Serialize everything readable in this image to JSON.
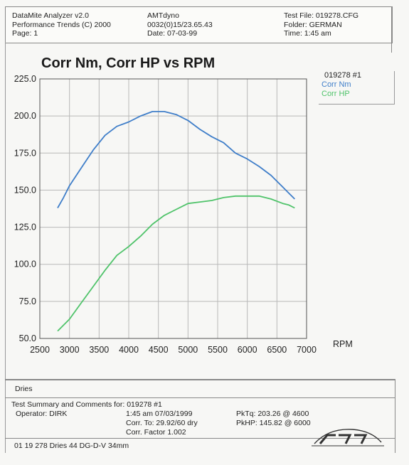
{
  "header": {
    "app_name": "DataMite Analyzer v2.0",
    "report_name": "Performance Trends (C) 2000",
    "page": "Page:  1",
    "dyno": "AMTdyno",
    "run_id": "0032(0)15/23.65.43",
    "date": "Date:  07-03-99",
    "test_file": "Test File:  019278.CFG",
    "folder": "Folder:  GERMAN",
    "time": "Time:  1:45 am"
  },
  "colors": {
    "corr_nm": "#3f7ec9",
    "corr_hp": "#4fc36a",
    "grid": "#b8b8b8"
  },
  "chart_data": {
    "type": "line",
    "title": "Corr Nm, Corr HP vs RPM",
    "xlabel": "RPM",
    "ylabel": "",
    "xlim": [
      2500,
      7000
    ],
    "ylim": [
      50,
      225
    ],
    "x_ticks": [
      "2500",
      "3000",
      "3500",
      "4000",
      "4500",
      "5000",
      "5500",
      "6000",
      "6500",
      "7000"
    ],
    "y_ticks": [
      "50.0",
      "75.0",
      "100.0",
      "125.0",
      "150.0",
      "175.0",
      "200.0",
      "225.0"
    ],
    "grid": true,
    "legend_title": "019278  #1",
    "legend_position": "top-right",
    "series": [
      {
        "name": "Corr Nm",
        "points": [
          [
            2800,
            138
          ],
          [
            2900,
            145
          ],
          [
            3000,
            153
          ],
          [
            3200,
            165
          ],
          [
            3400,
            177
          ],
          [
            3600,
            187
          ],
          [
            3800,
            193
          ],
          [
            4000,
            196
          ],
          [
            4200,
            200
          ],
          [
            4400,
            203
          ],
          [
            4600,
            203
          ],
          [
            4800,
            201
          ],
          [
            5000,
            197
          ],
          [
            5200,
            191
          ],
          [
            5400,
            186
          ],
          [
            5600,
            182
          ],
          [
            5800,
            175
          ],
          [
            6000,
            171
          ],
          [
            6200,
            166
          ],
          [
            6400,
            160
          ],
          [
            6600,
            152
          ],
          [
            6700,
            148
          ],
          [
            6800,
            144
          ]
        ]
      },
      {
        "name": "Corr HP",
        "points": [
          [
            2800,
            55
          ],
          [
            3000,
            63
          ],
          [
            3200,
            74
          ],
          [
            3400,
            85
          ],
          [
            3600,
            96
          ],
          [
            3800,
            106
          ],
          [
            4000,
            112
          ],
          [
            4200,
            119
          ],
          [
            4400,
            127
          ],
          [
            4600,
            133
          ],
          [
            4800,
            137
          ],
          [
            5000,
            141
          ],
          [
            5200,
            142
          ],
          [
            5400,
            143
          ],
          [
            5600,
            145
          ],
          [
            5800,
            146
          ],
          [
            6000,
            146
          ],
          [
            6200,
            146
          ],
          [
            6400,
            144
          ],
          [
            6600,
            141
          ],
          [
            6700,
            140
          ],
          [
            6800,
            138
          ]
        ]
      }
    ]
  },
  "footer": {
    "dries": "Dries",
    "summary_label": "Test Summary and Comments for:   019278   #1",
    "operator": "Operator:  DIRK",
    "time_date": "1:45 am 07/03/1999",
    "corr_to": "Corr. To: 29.92/60 dry",
    "corr_factor": "Corr. Factor 1.002",
    "pk_tq": "PkTq:  203.26 @  4600",
    "pk_hp": "PkHP:  145.82 @  6000",
    "notes": "01 19 278  Dries 44 DG-D-V 34mm"
  }
}
